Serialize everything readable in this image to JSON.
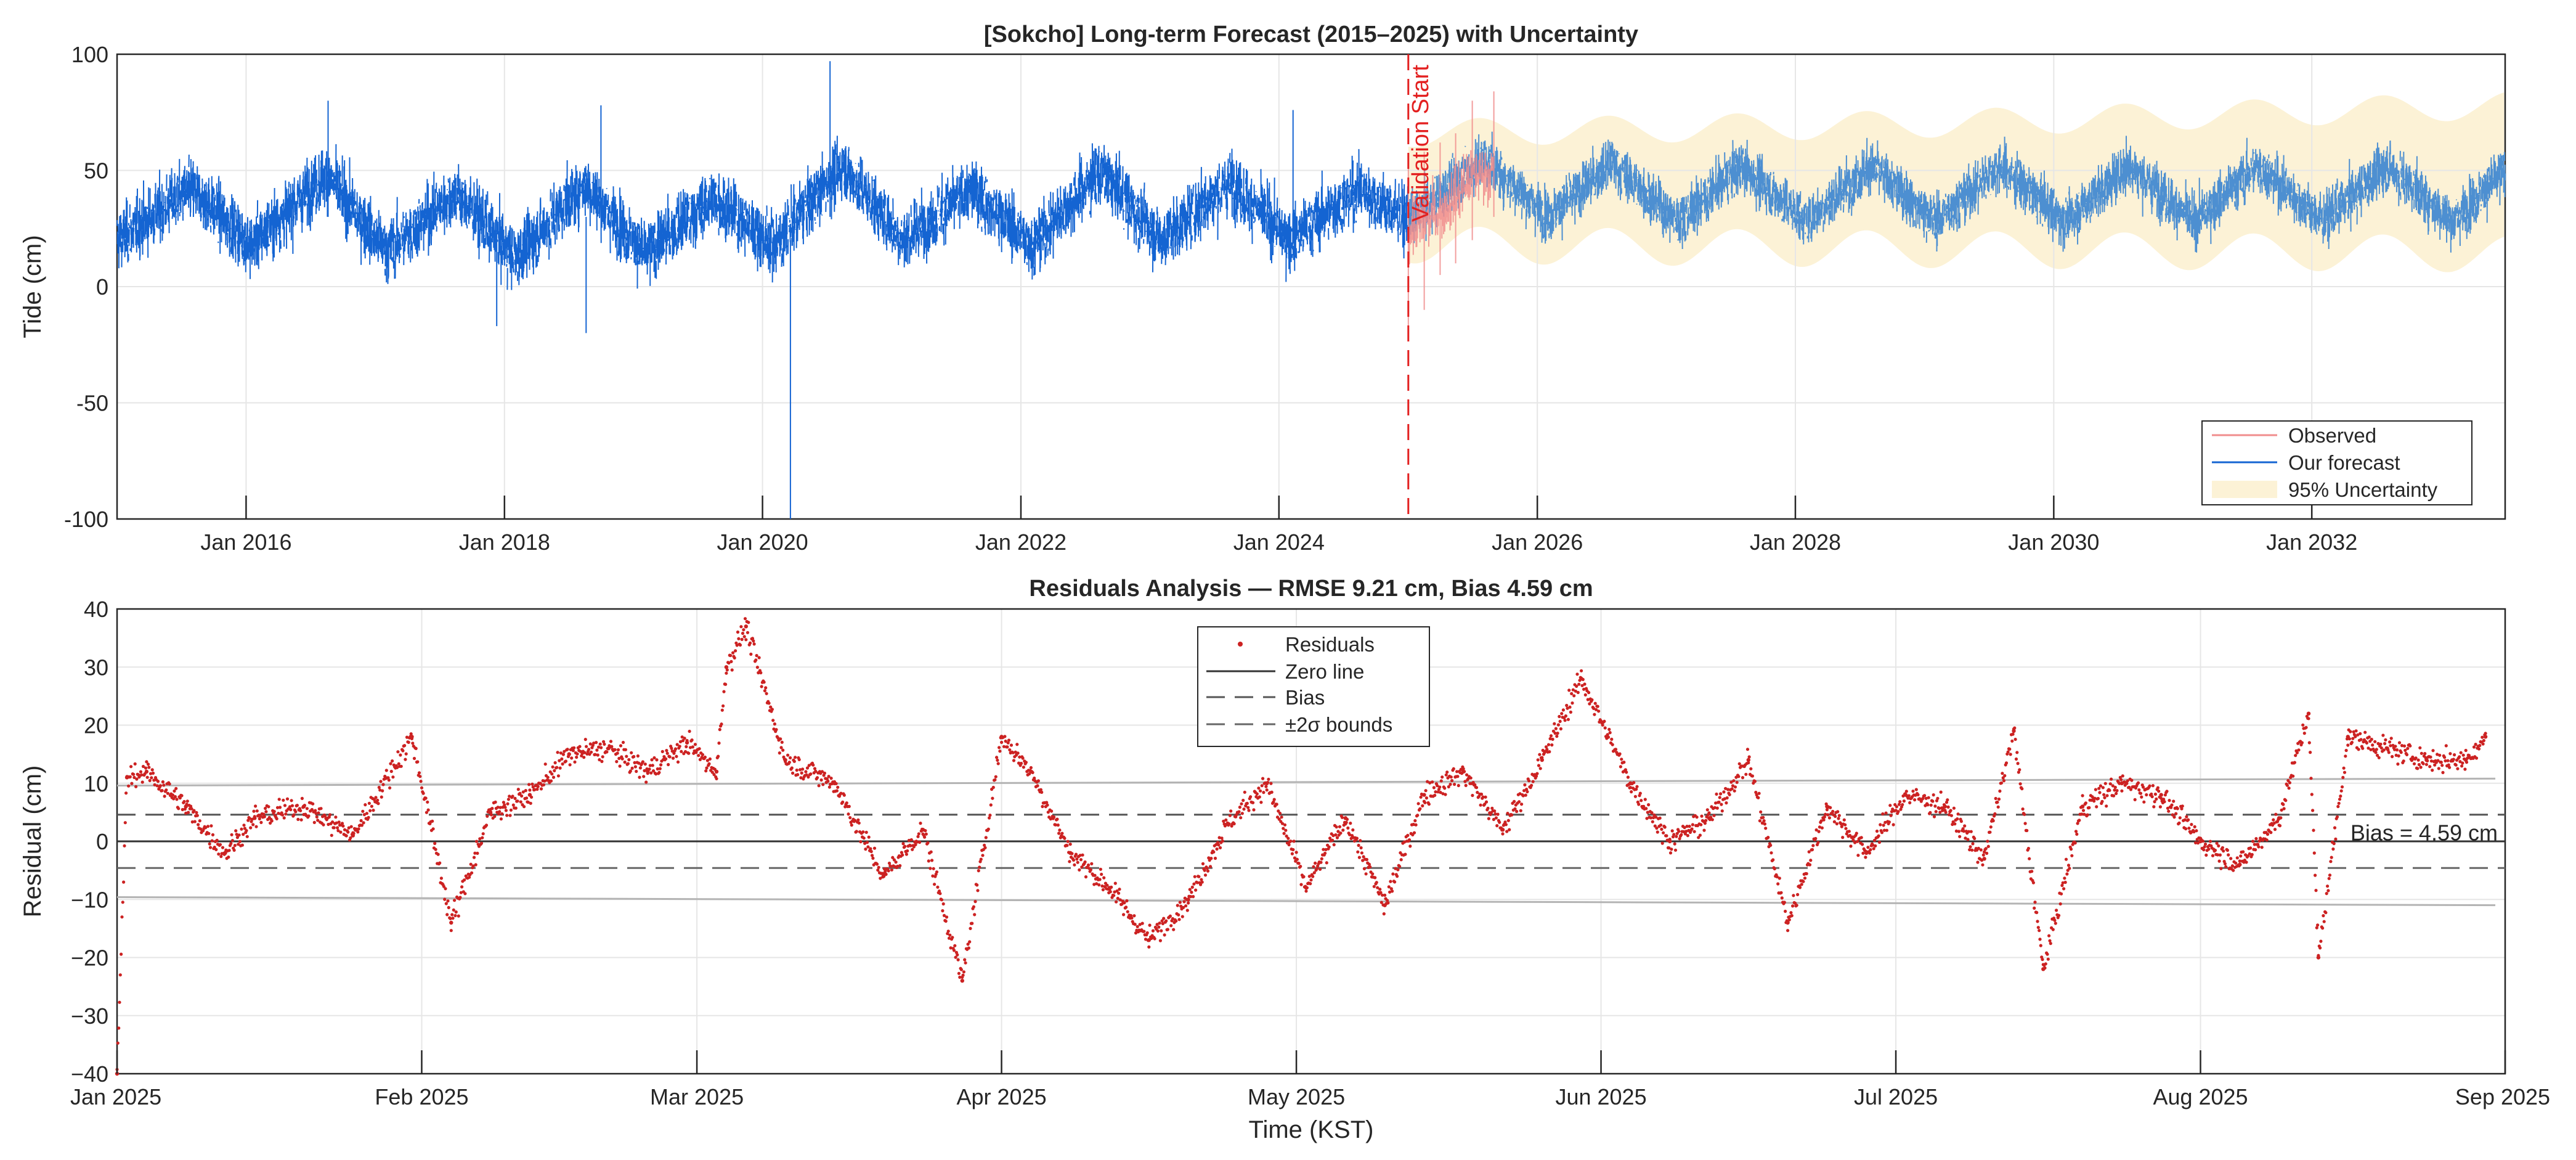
{
  "figure": {
    "colors": {
      "observed": "#f08c8c",
      "forecast_train": "#1464d2",
      "forecast_future": "#4d8fd1",
      "uncertainty": "#fcf2d6",
      "validation": "#e32020",
      "residual": "#cc2222",
      "zero_line": "#333333",
      "bias_line": "#555555",
      "sigma_line": "#666666",
      "bound_line": "#b4b4b4"
    }
  },
  "chart_data": [
    {
      "type": "line",
      "title": "[Sokcho] Long-term Forecast (2015–2025) with Uncertainty",
      "xlabel": "",
      "ylabel": "Tide (cm)",
      "x_range": [
        "2015-01-01",
        "2033-07-01"
      ],
      "ylim": [
        -100,
        100
      ],
      "yticks": [
        -100,
        -50,
        0,
        50,
        100
      ],
      "ytick_labels": [
        "-100",
        "-50",
        "0",
        "50",
        "100"
      ],
      "xtick_labels": [
        "Jan 2016",
        "Jan 2018",
        "Jan 2020",
        "Jan 2022",
        "Jan 2024",
        "Jan 2026",
        "Jan 2028",
        "Jan 2030",
        "Jan 2032"
      ],
      "xtick_dates": [
        "2016-01-01",
        "2018-01-01",
        "2020-01-01",
        "2022-01-01",
        "2024-01-01",
        "2026-01-01",
        "2028-01-01",
        "2030-01-01",
        "2032-01-01"
      ],
      "grid": true,
      "legend_position": "bottom-right",
      "validation_start": {
        "date": "2025-01-01",
        "label": "Validation Start"
      },
      "series": [
        {
          "name": "Observed",
          "style": "line",
          "x": [
            "2025-01-01",
            "2025-02-15",
            "2025-04-01",
            "2025-05-15",
            "2025-07-01",
            "2025-08-31"
          ],
          "values": [
            24,
            28,
            32,
            38,
            48,
            50
          ],
          "range": [
            [
              -22,
              55
            ],
            [
              -10,
              58
            ],
            [
              5,
              62
            ],
            [
              10,
              66
            ],
            [
              20,
              80
            ],
            [
              30,
              84
            ]
          ]
        },
        {
          "name": "Our forecast",
          "style": "line",
          "x": [
            "2015-01-01",
            "2015-08-01",
            "2016-01-15",
            "2016-08-15",
            "2017-02-01",
            "2017-08-15",
            "2018-02-01",
            "2018-08-15",
            "2019-02-01",
            "2019-08-15",
            "2020-02-01",
            "2020-08-15",
            "2021-02-01",
            "2021-08-15",
            "2022-02-01",
            "2022-08-15",
            "2023-02-01",
            "2023-08-15",
            "2024-02-01",
            "2024-08-15",
            "2025-01-01",
            "2025-08-01",
            "2026-02-01",
            "2026-08-01",
            "2027-02-01",
            "2027-08-01",
            "2028-02-01",
            "2028-08-01",
            "2029-02-01",
            "2029-08-01",
            "2030-02-01",
            "2030-08-01",
            "2031-02-01",
            "2031-08-01",
            "2032-02-01",
            "2032-08-01",
            "2033-02-01",
            "2033-07-01"
          ],
          "values": [
            20,
            42,
            18,
            48,
            15,
            40,
            12,
            44,
            14,
            38,
            18,
            52,
            20,
            42,
            18,
            50,
            20,
            45,
            20,
            42,
            28,
            55,
            30,
            53,
            28,
            52,
            28,
            52,
            28,
            52,
            28,
            52,
            28,
            52,
            28,
            52,
            28,
            50
          ]
        },
        {
          "name": "95% Uncertainty",
          "style": "band",
          "x": [
            "2025-01-01",
            "2029-01-01",
            "2033-07-01"
          ],
          "lower": [
            18,
            16,
            14
          ],
          "upper": [
            66,
            70,
            78
          ]
        }
      ],
      "annotations": [
        {
          "x": "2020-03-20",
          "y": -100,
          "text": ""
        }
      ]
    },
    {
      "type": "scatter",
      "title": "Residuals Analysis — RMSE 9.21 cm, Bias 4.59 cm",
      "xlabel": "Time (KST)",
      "ylabel": "Residual (cm)",
      "x_range": [
        "2025-01-01",
        "2025-09-01"
      ],
      "ylim": [
        -40,
        40
      ],
      "yticks": [
        -40,
        -30,
        -20,
        -10,
        0,
        10,
        20,
        30,
        40
      ],
      "ytick_labels": [
        "−40",
        "−30",
        "−20",
        "−10",
        "0",
        "10",
        "20",
        "30",
        "40"
      ],
      "xtick_labels": [
        "Jan 2025",
        "Feb 2025",
        "Mar 2025",
        "Apr 2025",
        "May 2025",
        "Jun 2025",
        "Jul 2025",
        "Aug 2025",
        "Sep 2025"
      ],
      "xtick_dates": [
        "2025-01-01",
        "2025-02-01",
        "2025-03-01",
        "2025-04-01",
        "2025-05-01",
        "2025-06-01",
        "2025-07-01",
        "2025-08-01",
        "2025-09-01"
      ],
      "grid": true,
      "legend_position": "top-center",
      "bias": 4.59,
      "bias_label": "Bias = 4.59 cm",
      "sigma2_band": [
        -9.6,
        9.6
      ],
      "bound_upper": {
        "x": [
          "2025-01-01",
          "2025-08-31"
        ],
        "y": [
          9.6,
          10.8
        ]
      },
      "bound_lower": {
        "x": [
          "2025-01-01",
          "2025-08-31"
        ],
        "y": [
          -9.6,
          -11.0
        ]
      },
      "series": [
        {
          "name": "Residuals",
          "style": "points",
          "x": [
            "2025-01-01",
            "2025-01-02",
            "2025-01-04",
            "2025-01-08",
            "2025-01-12",
            "2025-01-15",
            "2025-01-20",
            "2025-01-25",
            "2025-01-31",
            "2025-02-04",
            "2025-02-08",
            "2025-02-12",
            "2025-02-16",
            "2025-02-20",
            "2025-02-24",
            "2025-02-28",
            "2025-03-03",
            "2025-03-04",
            "2025-03-06",
            "2025-03-10",
            "2025-03-15",
            "2025-03-20",
            "2025-03-24",
            "2025-03-28",
            "2025-04-01",
            "2025-04-04",
            "2025-04-08",
            "2025-04-12",
            "2025-04-16",
            "2025-04-20",
            "2025-04-24",
            "2025-04-28",
            "2025-05-02",
            "2025-05-06",
            "2025-05-10",
            "2025-05-14",
            "2025-05-18",
            "2025-05-22",
            "2025-05-26",
            "2025-05-30",
            "2025-06-04",
            "2025-06-08",
            "2025-06-12",
            "2025-06-16",
            "2025-06-20",
            "2025-06-24",
            "2025-06-28",
            "2025-07-02",
            "2025-07-06",
            "2025-07-10",
            "2025-07-13",
            "2025-07-16",
            "2025-07-20",
            "2025-07-24",
            "2025-07-28",
            "2025-08-01",
            "2025-08-05",
            "2025-08-09",
            "2025-08-12",
            "2025-08-13",
            "2025-08-16",
            "2025-08-20",
            "2025-08-24",
            "2025-08-28",
            "2025-08-30"
          ],
          "values": [
            -40,
            11,
            12,
            6,
            -2,
            4,
            6,
            1,
            18,
            -14,
            5,
            8,
            15,
            16,
            12,
            17,
            12,
            30,
            37,
            14,
            10,
            -6,
            2,
            -24,
            18,
            12,
            -2,
            -8,
            -17,
            -10,
            3,
            10,
            -8,
            4,
            -11,
            8,
            12,
            2,
            14,
            28,
            10,
            0,
            4,
            14,
            -14,
            6,
            -2,
            8,
            6,
            -3,
            19,
            -22,
            6,
            10,
            8,
            0,
            -4,
            4,
            22,
            -20,
            18,
            16,
            14,
            14,
            18
          ]
        }
      ]
    }
  ],
  "legends": {
    "top": [
      "Observed",
      "Our forecast",
      "95% Uncertainty"
    ],
    "bottom": [
      "Residuals",
      "Zero line",
      "Bias",
      "±2σ  bounds"
    ]
  }
}
